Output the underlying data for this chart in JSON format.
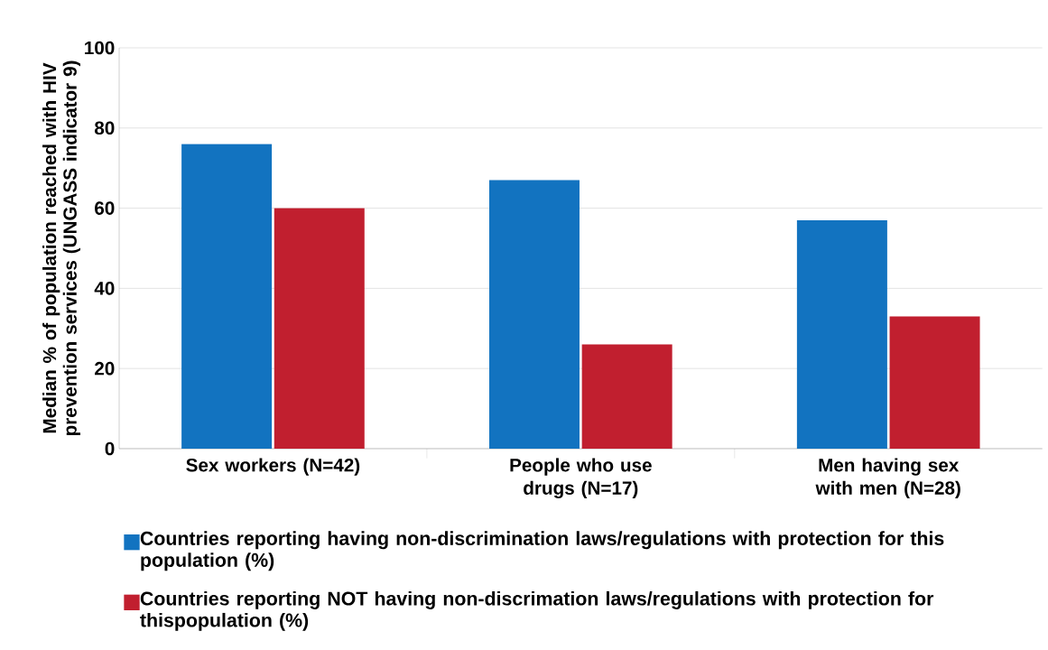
{
  "chart_data": {
    "type": "bar",
    "ylabel": "Median % of population reached with HIV prevention services (UNGASS indicator 9)",
    "categories": [
      "Sex workers (N=42)",
      "People who use drugs (N=17)",
      "Men having sex with men (N=28)"
    ],
    "series": [
      {
        "name": "Countries reporting having non-discrimination laws/regulations with protection for this population (%)",
        "color": "#1273c0",
        "values": [
          76,
          67,
          57
        ]
      },
      {
        "name": "Countries reporting NOT having non-discrimation laws/regulations with protection for thispopulation  (%)",
        "color": "#c11f2f",
        "values": [
          60,
          26,
          33
        ]
      }
    ],
    "ylim": [
      0,
      100
    ],
    "yticks": [
      0,
      20,
      40,
      60,
      80,
      100
    ],
    "grid": "y",
    "legend": "bottom"
  }
}
